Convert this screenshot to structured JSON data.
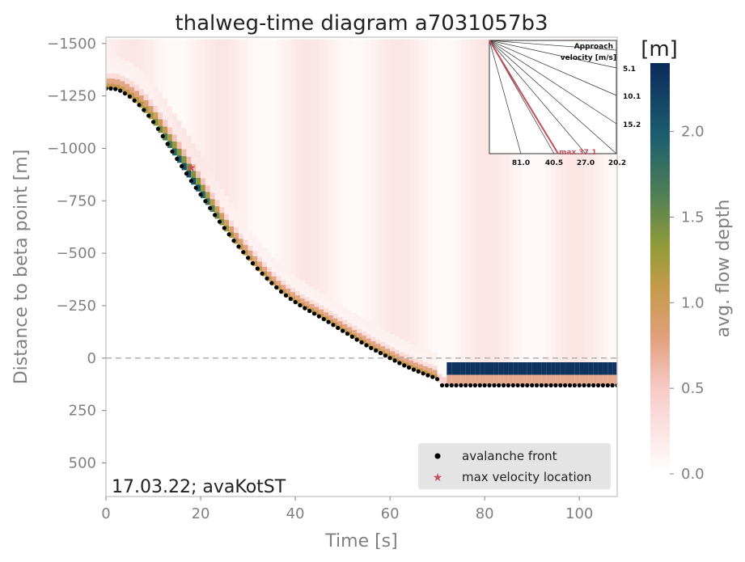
{
  "chart_data": {
    "type": "heatmap",
    "title": "thalweg-time diagram a7031057b3",
    "xlabel": "Time [s]",
    "ylabel": "Distance to beta point [m]",
    "xlim": [
      0,
      108
    ],
    "ylim": [
      -1530,
      660
    ],
    "y_inverted": true,
    "x_ticks": [
      0,
      20,
      40,
      60,
      80,
      100
    ],
    "y_ticks": [
      -1500,
      -1250,
      -1000,
      -750,
      -500,
      -250,
      0,
      250,
      500
    ],
    "beta_point_line": 0,
    "annotation": "17.03.22; avaKotST",
    "colorbar": {
      "label": "avg. flow depth",
      "unit": "[m]",
      "range": [
        0,
        2.4
      ],
      "ticks": [
        "0.0",
        "0.5",
        "1.0",
        "1.5",
        "2.0"
      ],
      "colors": [
        "#ffffff",
        "#f7c9c6",
        "#e0a07c",
        "#b19a36",
        "#5f8c4a",
        "#1d5e6e",
        "#0b2a5c"
      ]
    },
    "legend": {
      "placement": "lower-right",
      "entries": [
        {
          "label": "avalanche front",
          "marker": "dot",
          "color": "#000000"
        },
        {
          "label": "max velocity location",
          "marker": "star",
          "color": "#c0505a"
        }
      ]
    },
    "avalanche_front": {
      "x": [
        0,
        1,
        2,
        3,
        4,
        5,
        6,
        7,
        8,
        9,
        10,
        11,
        12,
        13,
        14,
        15,
        16,
        17,
        18,
        19,
        20,
        21,
        22,
        23,
        24,
        25,
        26,
        27,
        28,
        29,
        30,
        31,
        32,
        33,
        34,
        35,
        36,
        37,
        38,
        39,
        40,
        41,
        42,
        43,
        44,
        45,
        46,
        47,
        48,
        49,
        50,
        51,
        52,
        53,
        54,
        55,
        56,
        57,
        58,
        59,
        60,
        61,
        62,
        63,
        64,
        65,
        66,
        67,
        68,
        69,
        70,
        71,
        72,
        73,
        74,
        75,
        76,
        77,
        78,
        79,
        80,
        81,
        82,
        83,
        84,
        85,
        86,
        87,
        88,
        89,
        90,
        91,
        92,
        93,
        94,
        95,
        96,
        97,
        98,
        99,
        100,
        101,
        102,
        103,
        104,
        105,
        106,
        107,
        108
      ],
      "y": [
        -1285,
        -1285,
        -1283,
        -1275,
        -1262,
        -1247,
        -1228,
        -1207,
        -1183,
        -1156,
        -1126,
        -1093,
        -1058,
        -1021,
        -985,
        -950,
        -915,
        -880,
        -845,
        -812,
        -780,
        -748,
        -715,
        -682,
        -650,
        -620,
        -590,
        -560,
        -532,
        -505,
        -478,
        -452,
        -427,
        -403,
        -380,
        -358,
        -337,
        -317,
        -299,
        -282,
        -267,
        -252,
        -238,
        -225,
        -212,
        -199,
        -186,
        -172,
        -158,
        -144,
        -130,
        -116,
        -102,
        -88,
        -75,
        -61,
        -48,
        -36,
        -24,
        -12,
        0,
        12,
        24,
        35,
        45,
        55,
        64,
        73,
        82,
        90,
        100,
        130,
        130,
        130,
        130,
        130,
        130,
        130,
        130,
        130,
        130,
        130,
        130,
        130,
        130,
        130,
        130,
        130,
        130,
        130,
        130,
        130,
        130,
        130,
        130,
        130,
        130,
        130,
        130,
        130,
        130,
        130,
        130,
        130,
        130,
        130,
        130,
        130,
        130
      ]
    },
    "max_velocity_location": {
      "x": 18,
      "y": -910
    },
    "inset": {
      "title_line1": "Approach",
      "title_line2": "velocity [m/s]",
      "right_labels": [
        "5.1",
        "10.1",
        "15.2"
      ],
      "bottom_labels": [
        "81.0",
        "40.5",
        "27.0",
        "20.2"
      ],
      "max_label": "max 37.1",
      "max_velocity": 37.1
    }
  }
}
